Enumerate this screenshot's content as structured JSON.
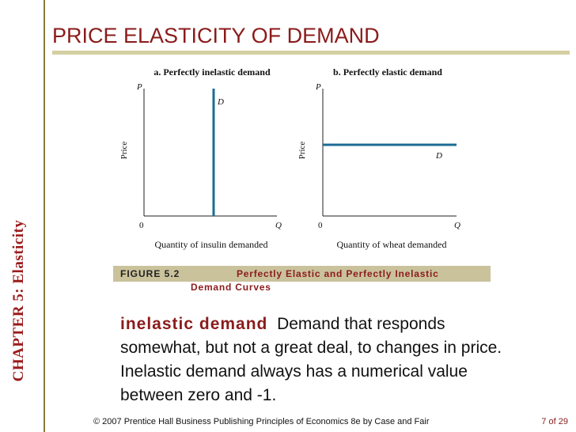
{
  "title": "PRICE ELASTICITY OF DEMAND",
  "chapter": "CHAPTER 5:  Elasticity",
  "panel_a": {
    "heading": "a. Perfectly inelastic demand",
    "y_var": "P",
    "y_label": "Price",
    "curve_label": "D",
    "origin": "0",
    "x_var": "Q",
    "x_label": "Quantity of insulin demanded"
  },
  "panel_b": {
    "heading": "b. Perfectly elastic demand",
    "y_var": "P",
    "y_label": "Price",
    "curve_label": "D",
    "origin": "0",
    "x_var": "Q",
    "x_label": "Quantity of wheat demanded"
  },
  "caption": {
    "figure": "FIGURE 5.2",
    "title_line1": "Perfectly Elastic and Perfectly Inelastic",
    "title_line2": "Demand Curves"
  },
  "definition": {
    "term": "inelastic demand",
    "text": "Demand that responds somewhat, but not a great deal, to changes in price.  Inelastic demand always has a numerical value between zero and -1."
  },
  "footer": "© 2007 Prentice Hall Business Publishing   Principles of Economics 8e by Case and Fair",
  "page": "7 of 29",
  "colors": {
    "accent": "#8b1b1b",
    "curve": "#1c6c94",
    "rule": "#d4cfa2",
    "caption_bar": "#c9c29b"
  }
}
